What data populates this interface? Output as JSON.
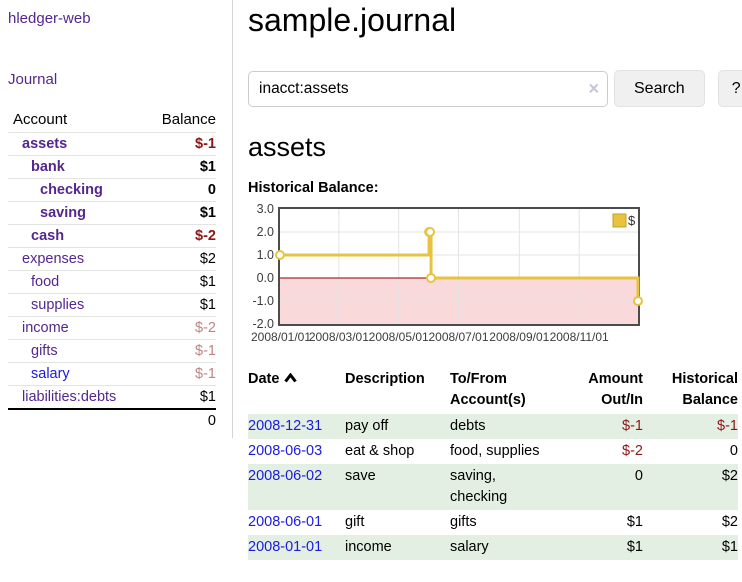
{
  "palette": {
    "purple_link": "#54278e",
    "blue_link": "#1a1ae0",
    "negative_strong": "#8e1515",
    "negative_muted": "#c08484",
    "row_stripe_green": "#e3efe2",
    "sidebar_divider": "#d4d4d4"
  },
  "sidebar": {
    "app_title": "hledger-web",
    "nav_journal": "Journal",
    "accounts_table": {
      "headers": {
        "account": "Account",
        "balance": "Balance"
      },
      "rows": [
        {
          "label": "assets",
          "balance": "$-1",
          "level": 1,
          "bold": true,
          "link": "purple",
          "muted": false
        },
        {
          "label": "bank",
          "balance": "$1",
          "level": 2,
          "bold": true,
          "link": "purple",
          "muted": false
        },
        {
          "label": "checking",
          "balance": "0",
          "level": 3,
          "bold": true,
          "link": "purple",
          "muted": false
        },
        {
          "label": "saving",
          "balance": "$1",
          "level": 3,
          "bold": true,
          "link": "purple",
          "muted": false
        },
        {
          "label": "cash",
          "balance": "$-2",
          "level": 2,
          "bold": true,
          "link": "purple",
          "muted": false
        },
        {
          "label": "expenses",
          "balance": "$2",
          "level": 1,
          "bold": false,
          "link": "purple",
          "muted": false
        },
        {
          "label": "food",
          "balance": "$1",
          "level": 2,
          "bold": false,
          "link": "purple",
          "muted": false
        },
        {
          "label": "supplies",
          "balance": "$1",
          "level": 2,
          "bold": false,
          "link": "purple",
          "muted": false
        },
        {
          "label": "income",
          "balance": "$-2",
          "level": 1,
          "bold": false,
          "link": "purple",
          "muted": true
        },
        {
          "label": "gifts",
          "balance": "$-1",
          "level": 2,
          "bold": false,
          "link": "purple",
          "muted": true
        },
        {
          "label": "salary",
          "balance": "$-1",
          "level": 2,
          "bold": false,
          "link": "blue",
          "muted": true
        },
        {
          "label": "liabilities:debts",
          "balance": "$1",
          "level": 1,
          "bold": false,
          "link": "purple",
          "muted": false
        }
      ],
      "total": "0"
    }
  },
  "header": {
    "title": "sample.journal"
  },
  "search": {
    "value": "inacct:assets",
    "clear_icon": "×",
    "button_label": "Search",
    "help_label": "?"
  },
  "account_page": {
    "title": "assets",
    "chart_label": "Historical Balance:"
  },
  "chart_data": {
    "type": "line",
    "title": "Historical Balance:",
    "step": true,
    "series": [
      {
        "name": "$",
        "points": [
          [
            "2008-01-01",
            1
          ],
          [
            "2008-06-01",
            2
          ],
          [
            "2008-06-02",
            2
          ],
          [
            "2008-06-03",
            0
          ],
          [
            "2008-12-31",
            -1
          ]
        ]
      }
    ],
    "xlim": [
      "2008-01-01",
      "2008-12-31"
    ],
    "ylim": [
      -2,
      3
    ],
    "y_ticks": [
      3.0,
      2.0,
      1.0,
      0.0,
      -1.0,
      -2.0
    ],
    "x_ticks": [
      "2008/01/01",
      "2008/03/01",
      "2008/05/01",
      "2008/07/01",
      "2008/09/01",
      "2008/11/01"
    ],
    "grid": true,
    "negative_region_shaded": true,
    "legend": {
      "label": "$",
      "position": "top-right"
    },
    "colors": {
      "line": "#e9c33f",
      "marker_fill": "#ffffff",
      "negative_fill": "#f9d9d9",
      "zero_line": "#8b0000",
      "grid": "#e3e3e3",
      "border": "#4c4c4c",
      "tick_text": "#3c3c3c"
    }
  },
  "register_table": {
    "headers": {
      "date": "Date",
      "description": "Description",
      "accounts": "To/From\nAccount(s)",
      "amount": "Amount\nOut/In",
      "balance": "Historical\nBalance"
    },
    "rows": [
      {
        "date": "2008-12-31",
        "description": "pay off",
        "accounts": "debts",
        "amount": "$-1",
        "balance": "$-1"
      },
      {
        "date": "2008-06-03",
        "description": "eat & shop",
        "accounts": "food, supplies",
        "amount": "$-2",
        "balance": "0"
      },
      {
        "date": "2008-06-02",
        "description": "save",
        "accounts": "saving,\nchecking",
        "amount": "0",
        "balance": "$2"
      },
      {
        "date": "2008-06-01",
        "description": "gift",
        "accounts": "gifts",
        "amount": "$1",
        "balance": "$2"
      },
      {
        "date": "2008-01-01",
        "description": "income",
        "accounts": "salary",
        "amount": "$1",
        "balance": "$1"
      }
    ]
  }
}
